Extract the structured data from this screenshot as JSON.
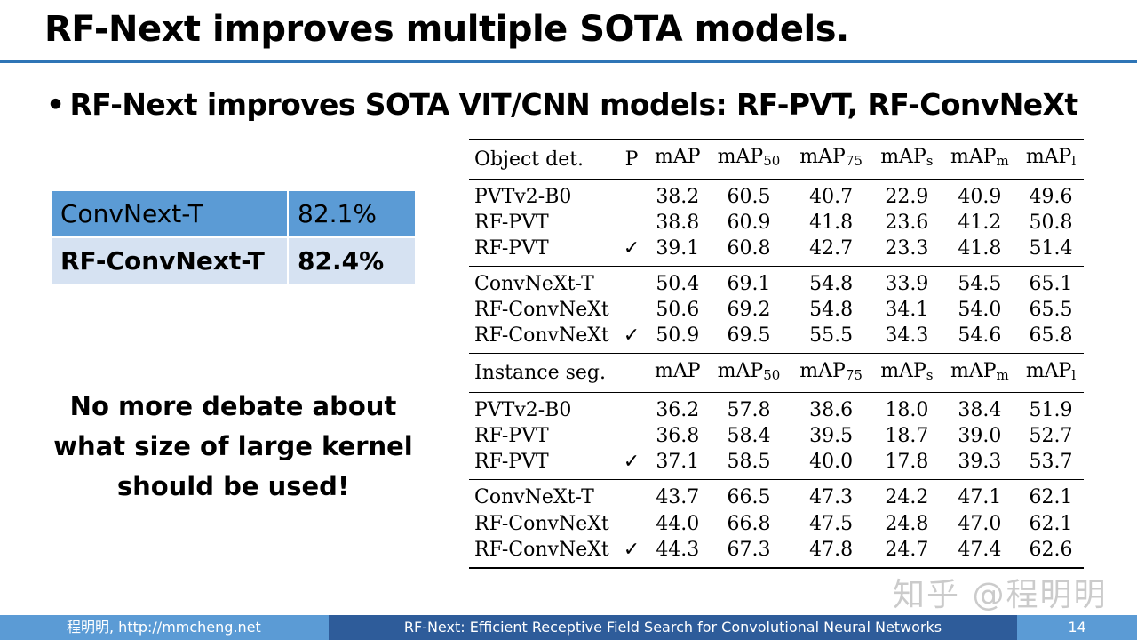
{
  "title": "RF-Next improves multiple SOTA models.",
  "bullet": "RF-Next improves SOTA VIT/CNN models: RF-PVT, RF-ConvNeXt",
  "comparison": [
    {
      "model": "ConvNext-T",
      "value": "82.1%"
    },
    {
      "model": "RF-ConvNext-T",
      "value": "82.4%"
    }
  ],
  "debate_lines": [
    "No more debate about",
    "what size of large kernel",
    "should be used!"
  ],
  "results": {
    "det_header": {
      "task": "Object det.",
      "p": "P",
      "cols": [
        "mAP",
        "mAP",
        "mAP",
        "mAP",
        "mAP",
        "mAP"
      ],
      "subs": [
        "",
        "50",
        "75",
        "s",
        "m",
        "l"
      ]
    },
    "seg_header": {
      "task": "Instance seg.",
      "p": "",
      "cols": [
        "mAP",
        "mAP",
        "mAP",
        "mAP",
        "mAP",
        "mAP"
      ],
      "subs": [
        "",
        "50",
        "75",
        "s",
        "m",
        "l"
      ]
    },
    "det_groups": [
      [
        {
          "name": "PVTv2-B0",
          "p": "",
          "vals": [
            "38.2",
            "60.5",
            "40.7",
            "22.9",
            "40.9",
            "49.6"
          ]
        },
        {
          "name": "RF-PVT",
          "p": "",
          "vals": [
            "38.8",
            "60.9",
            "41.8",
            "23.6",
            "41.2",
            "50.8"
          ]
        },
        {
          "name": "RF-PVT",
          "p": "✓",
          "vals": [
            "39.1",
            "60.8",
            "42.7",
            "23.3",
            "41.8",
            "51.4"
          ]
        }
      ],
      [
        {
          "name": "ConvNeXt-T",
          "p": "",
          "vals": [
            "50.4",
            "69.1",
            "54.8",
            "33.9",
            "54.5",
            "65.1"
          ]
        },
        {
          "name": "RF-ConvNeXt",
          "p": "",
          "vals": [
            "50.6",
            "69.2",
            "54.8",
            "34.1",
            "54.0",
            "65.5"
          ]
        },
        {
          "name": "RF-ConvNeXt",
          "p": "✓",
          "vals": [
            "50.9",
            "69.5",
            "55.5",
            "34.3",
            "54.6",
            "65.8"
          ]
        }
      ]
    ],
    "seg_groups": [
      [
        {
          "name": "PVTv2-B0",
          "p": "",
          "vals": [
            "36.2",
            "57.8",
            "38.6",
            "18.0",
            "38.4",
            "51.9"
          ]
        },
        {
          "name": "RF-PVT",
          "p": "",
          "vals": [
            "36.8",
            "58.4",
            "39.5",
            "18.7",
            "39.0",
            "52.7"
          ]
        },
        {
          "name": "RF-PVT",
          "p": "✓",
          "vals": [
            "37.1",
            "58.5",
            "40.0",
            "17.8",
            "39.3",
            "53.7"
          ]
        }
      ],
      [
        {
          "name": "ConvNeXt-T",
          "p": "",
          "vals": [
            "43.7",
            "66.5",
            "47.3",
            "24.2",
            "47.1",
            "62.1"
          ]
        },
        {
          "name": "RF-ConvNeXt",
          "p": "",
          "vals": [
            "44.0",
            "66.8",
            "47.5",
            "24.8",
            "47.0",
            "62.1"
          ]
        },
        {
          "name": "RF-ConvNeXt",
          "p": "✓",
          "vals": [
            "44.3",
            "67.3",
            "47.8",
            "24.7",
            "47.4",
            "62.6"
          ]
        }
      ]
    ]
  },
  "watermark": "知乎 @程明明",
  "footer": {
    "author": "程明明, http://mmcheng.net",
    "paper": "RF-Next: Efficient Receptive Field Search for Convolutional Neural Networks",
    "page": "14"
  }
}
